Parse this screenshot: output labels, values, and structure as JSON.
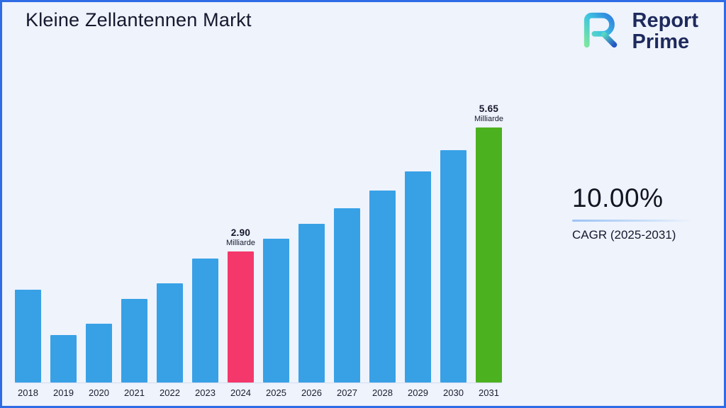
{
  "title": "Kleine Zellantennen Markt",
  "logo": {
    "icon": "report-prime-logo-mark",
    "line1": "Report",
    "line2": "Prime",
    "text_color": "#1e2a5c",
    "gradient": [
      "#7be6a0",
      "#3ec6e0",
      "#2f7fe0"
    ]
  },
  "cagr": {
    "value": "10.00%",
    "label": "CAGR (2025-2031)"
  },
  "chart_data": {
    "type": "bar",
    "title": "Kleine Zellantennen Markt",
    "categories": [
      "2018",
      "2019",
      "2020",
      "2021",
      "2022",
      "2023",
      "2024",
      "2025",
      "2026",
      "2027",
      "2028",
      "2029",
      "2030",
      "2031"
    ],
    "values": [
      2.05,
      1.05,
      1.3,
      1.85,
      2.2,
      2.75,
      2.9,
      3.19,
      3.51,
      3.86,
      4.25,
      4.67,
      5.14,
      5.65
    ],
    "unit": "Milliarde",
    "xlabel": "",
    "ylabel": "",
    "ylim": [
      0,
      6
    ],
    "grid": false,
    "legend": false,
    "default_color": "#38a1e6",
    "highlight_colors": {
      "2024": "#f4386b",
      "2031": "#4cb11f"
    },
    "annotations": [
      {
        "year": "2024",
        "value_label": "2.90",
        "unit_label": "Milliarde"
      },
      {
        "year": "2031",
        "value_label": "5.65",
        "unit_label": "Milliarde"
      }
    ]
  }
}
